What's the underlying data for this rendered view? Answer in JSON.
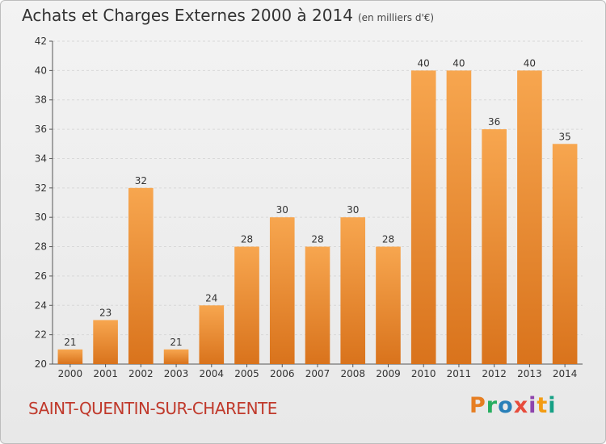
{
  "header": {
    "title": "Achats et Charges Externes 2000 à 2014",
    "subtitle": "(en milliers d'€)"
  },
  "footer": {
    "commune": "SAINT-QUENTIN-SUR-CHARENTE",
    "logo_letters": [
      "P",
      "r",
      "o",
      "x",
      "i",
      "t",
      "i"
    ],
    "logo_colors": [
      "#e67e22",
      "#27ae60",
      "#2980b9",
      "#e74c3c",
      "#8e44ad",
      "#f39c12",
      "#16a085"
    ]
  },
  "chart_data": {
    "type": "bar",
    "categories": [
      "2000",
      "2001",
      "2002",
      "2003",
      "2004",
      "2005",
      "2006",
      "2007",
      "2008",
      "2009",
      "2010",
      "2011",
      "2012",
      "2013",
      "2014"
    ],
    "values": [
      21,
      23,
      32,
      21,
      24,
      28,
      30,
      28,
      30,
      28,
      40,
      40,
      36,
      40,
      35
    ],
    "title": "Achats et Charges Externes 2000 à 2014",
    "ylim": [
      20,
      42
    ],
    "yticks": [
      20,
      22,
      24,
      26,
      28,
      30,
      32,
      34,
      36,
      38,
      40,
      42
    ],
    "grid": true,
    "bar_color_top": "#f7a64f",
    "bar_color_bottom": "#d9731c"
  }
}
